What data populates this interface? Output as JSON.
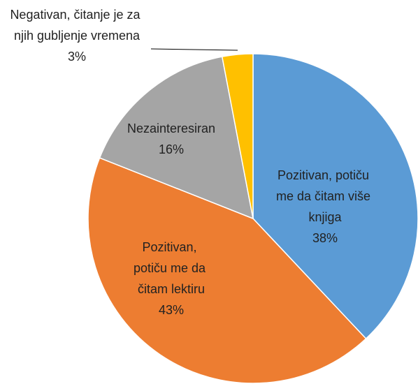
{
  "chart_data": {
    "type": "pie",
    "categories": [
      "Pozitivan, potiču me da čitam više knjiga",
      "Pozitivan, potiču me da čitam lektiru",
      "Nezainteresiran",
      "Negativan, čitanje je za njih gubljenje vremena"
    ],
    "values": [
      38,
      43,
      16,
      3
    ],
    "value_labels": [
      "38%",
      "43%",
      "16%",
      "3%"
    ],
    "colors": [
      "#5b9bd5",
      "#ed7d31",
      "#a5a5a5",
      "#ffc000"
    ]
  }
}
